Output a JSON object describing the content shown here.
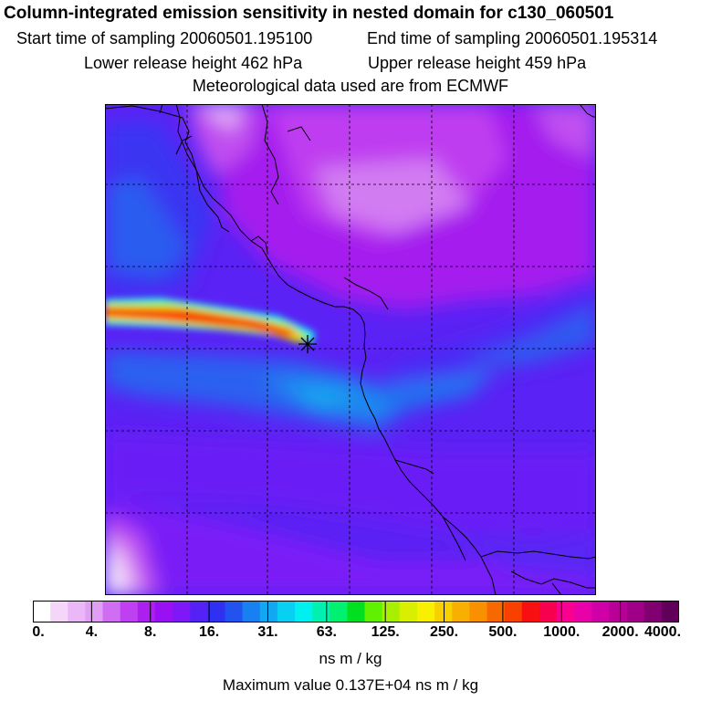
{
  "header": {
    "title": "Column-integrated emission sensitivity in nested domain for c130_060501",
    "start_time": "Start time of sampling 20060501.195100",
    "end_time": "End time of sampling 20060501.195314",
    "lower_height": "Lower release height  462 hPa",
    "upper_height": "Upper release height  459 hPa",
    "met_data": "Meteorological data used are from ECMWF"
  },
  "colorbar": {
    "tick_labels": [
      "0.",
      "4.",
      "8.",
      "16.",
      "31.",
      "63.",
      "125.",
      "250.",
      "500.",
      "1000.",
      "2000.",
      "4000."
    ],
    "units": "ns m / kg",
    "colors": [
      "#ffffff",
      "#f4d6f8",
      "#eab8f6",
      "#e09ef4",
      "#cf6ef2",
      "#bf40f0",
      "#ab20ee",
      "#9a10f4",
      "#7f18f8",
      "#5522f6",
      "#3030f2",
      "#2252f0",
      "#1880f0",
      "#10a8f0",
      "#08d0f2",
      "#00f0f0",
      "#00f0b0",
      "#00f070",
      "#00e020",
      "#60f000",
      "#a8f000",
      "#d8f000",
      "#f8f000",
      "#f8d000",
      "#f8b000",
      "#f89000",
      "#f86800",
      "#f84000",
      "#f81010",
      "#f80050",
      "#f80090",
      "#e800a8",
      "#d000a8",
      "#b80098",
      "#a00088",
      "#800070",
      "#600058"
    ]
  },
  "footer": {
    "max_value": "Maximum value  0.137E+04 ns m / kg"
  }
}
